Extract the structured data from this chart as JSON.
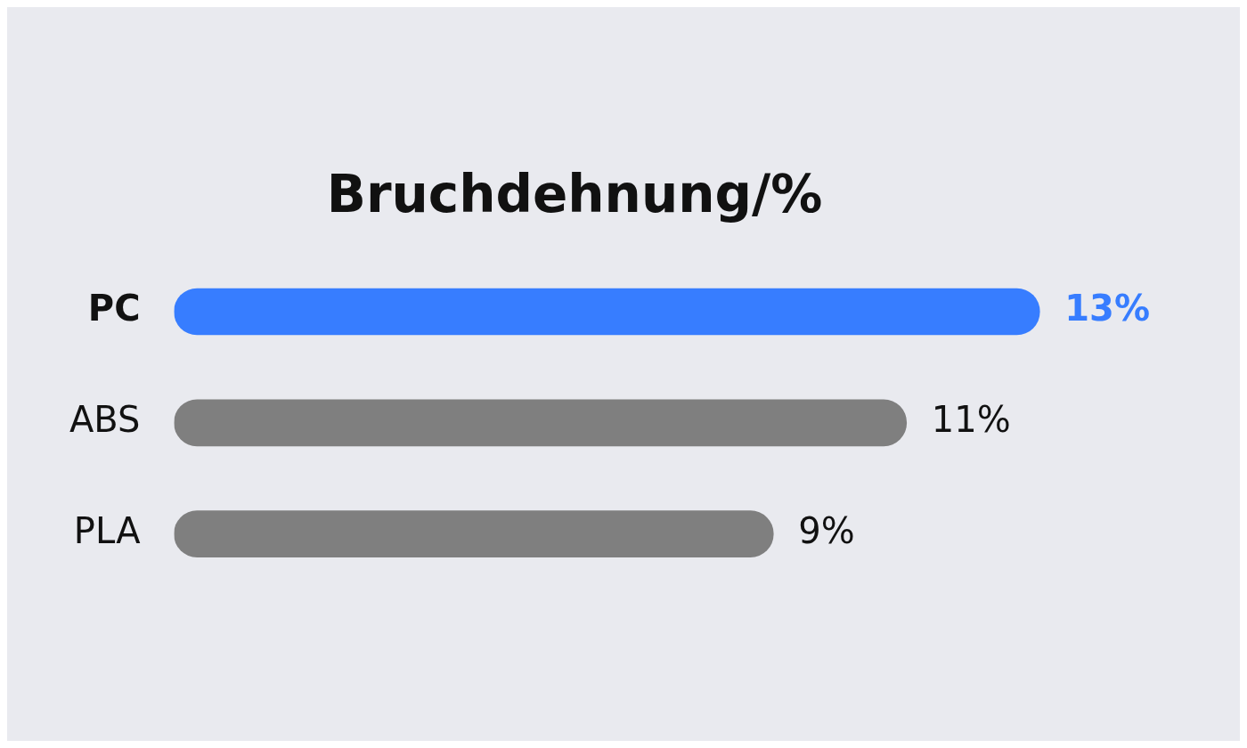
{
  "chart_data": {
    "type": "bar",
    "orientation": "horizontal",
    "title": "Bruchdehnung/%",
    "categories": [
      "PC",
      "ABS",
      "PLA"
    ],
    "values": [
      13,
      11,
      9
    ],
    "colors": [
      "#377dff",
      "#7f7f7f",
      "#7f7f7f"
    ],
    "value_labels": [
      "13%",
      "11%",
      "9%"
    ],
    "legend": false
  }
}
